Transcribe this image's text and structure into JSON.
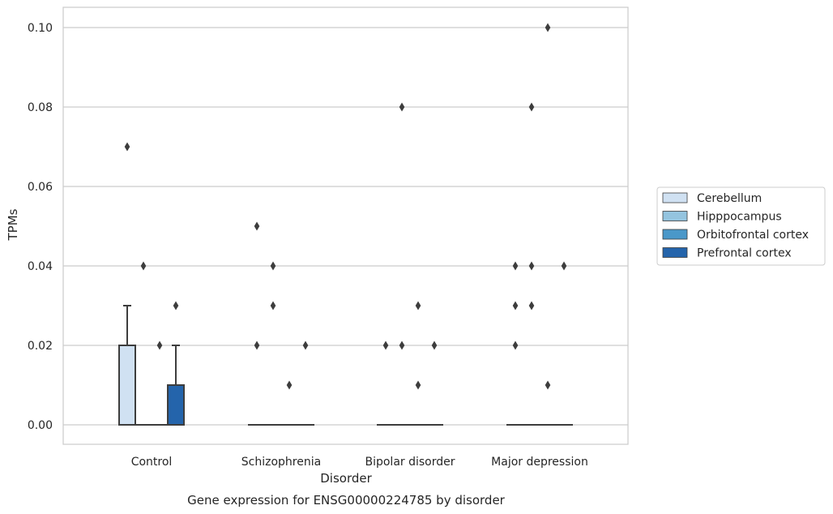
{
  "chart_data": {
    "type": "box",
    "title": "",
    "caption": "Gene expression for ENSG00000224785 by disorder",
    "xlabel": "Disorder",
    "ylabel": "TPMs",
    "categories": [
      "Control",
      "Schizophrenia",
      "Bipolar disorder",
      "Major depression"
    ],
    "ylim": [
      -0.005,
      0.105
    ],
    "yticks": [
      0.0,
      0.02,
      0.04,
      0.06,
      0.08,
      0.1
    ],
    "ytick_labels": [
      "0.00",
      "0.02",
      "0.04",
      "0.06",
      "0.08",
      "0.10"
    ],
    "grid": "horizontal",
    "legend_position": "right",
    "series": [
      {
        "name": "Cerebellum",
        "color": "#d0e1f2",
        "boxes": [
          {
            "q1": 0.0,
            "median": 0.0,
            "q3": 0.02,
            "whisker_low": 0.0,
            "whisker_high": 0.03,
            "outliers": [
              0.07
            ]
          },
          {
            "q1": 0.0,
            "median": 0.0,
            "q3": 0.0,
            "whisker_low": 0.0,
            "whisker_high": 0.0,
            "outliers": [
              0.02,
              0.05
            ]
          },
          {
            "q1": 0.0,
            "median": 0.0,
            "q3": 0.0,
            "whisker_low": 0.0,
            "whisker_high": 0.0,
            "outliers": [
              0.02
            ]
          },
          {
            "q1": 0.0,
            "median": 0.0,
            "q3": 0.0,
            "whisker_low": 0.0,
            "whisker_high": 0.0,
            "outliers": [
              0.02,
              0.03,
              0.04
            ]
          }
        ]
      },
      {
        "name": "Hipppocampus",
        "color": "#94c4df",
        "boxes": [
          {
            "q1": 0.0,
            "median": 0.0,
            "q3": 0.0,
            "whisker_low": 0.0,
            "whisker_high": 0.0,
            "outliers": [
              0.04
            ]
          },
          {
            "q1": 0.0,
            "median": 0.0,
            "q3": 0.0,
            "whisker_low": 0.0,
            "whisker_high": 0.0,
            "outliers": [
              0.03,
              0.04
            ]
          },
          {
            "q1": 0.0,
            "median": 0.0,
            "q3": 0.0,
            "whisker_low": 0.0,
            "whisker_high": 0.0,
            "outliers": [
              0.02,
              0.08
            ]
          },
          {
            "q1": 0.0,
            "median": 0.0,
            "q3": 0.0,
            "whisker_low": 0.0,
            "whisker_high": 0.0,
            "outliers": [
              0.03,
              0.04,
              0.08
            ]
          }
        ]
      },
      {
        "name": "Orbitofrontal cortex",
        "color": "#4a98c9",
        "boxes": [
          {
            "q1": 0.0,
            "median": 0.0,
            "q3": 0.0,
            "whisker_low": 0.0,
            "whisker_high": 0.0,
            "outliers": [
              0.02
            ]
          },
          {
            "q1": 0.0,
            "median": 0.0,
            "q3": 0.0,
            "whisker_low": 0.0,
            "whisker_high": 0.0,
            "outliers": [
              0.01
            ]
          },
          {
            "q1": 0.0,
            "median": 0.0,
            "q3": 0.0,
            "whisker_low": 0.0,
            "whisker_high": 0.0,
            "outliers": [
              0.01,
              0.03
            ]
          },
          {
            "q1": 0.0,
            "median": 0.0,
            "q3": 0.0,
            "whisker_low": 0.0,
            "whisker_high": 0.0,
            "outliers": [
              0.01,
              0.1
            ]
          }
        ]
      },
      {
        "name": "Prefrontal cortex",
        "color": "#2464ab",
        "boxes": [
          {
            "q1": 0.0,
            "median": 0.0,
            "q3": 0.01,
            "whisker_low": 0.0,
            "whisker_high": 0.02,
            "outliers": [
              0.03
            ]
          },
          {
            "q1": 0.0,
            "median": 0.0,
            "q3": 0.0,
            "whisker_low": 0.0,
            "whisker_high": 0.0,
            "outliers": [
              0.02
            ]
          },
          {
            "q1": 0.0,
            "median": 0.0,
            "q3": 0.0,
            "whisker_low": 0.0,
            "whisker_high": 0.0,
            "outliers": [
              0.02
            ]
          },
          {
            "q1": 0.0,
            "median": 0.0,
            "q3": 0.0,
            "whisker_low": 0.0,
            "whisker_high": 0.0,
            "outliers": [
              0.04
            ]
          }
        ]
      }
    ]
  }
}
